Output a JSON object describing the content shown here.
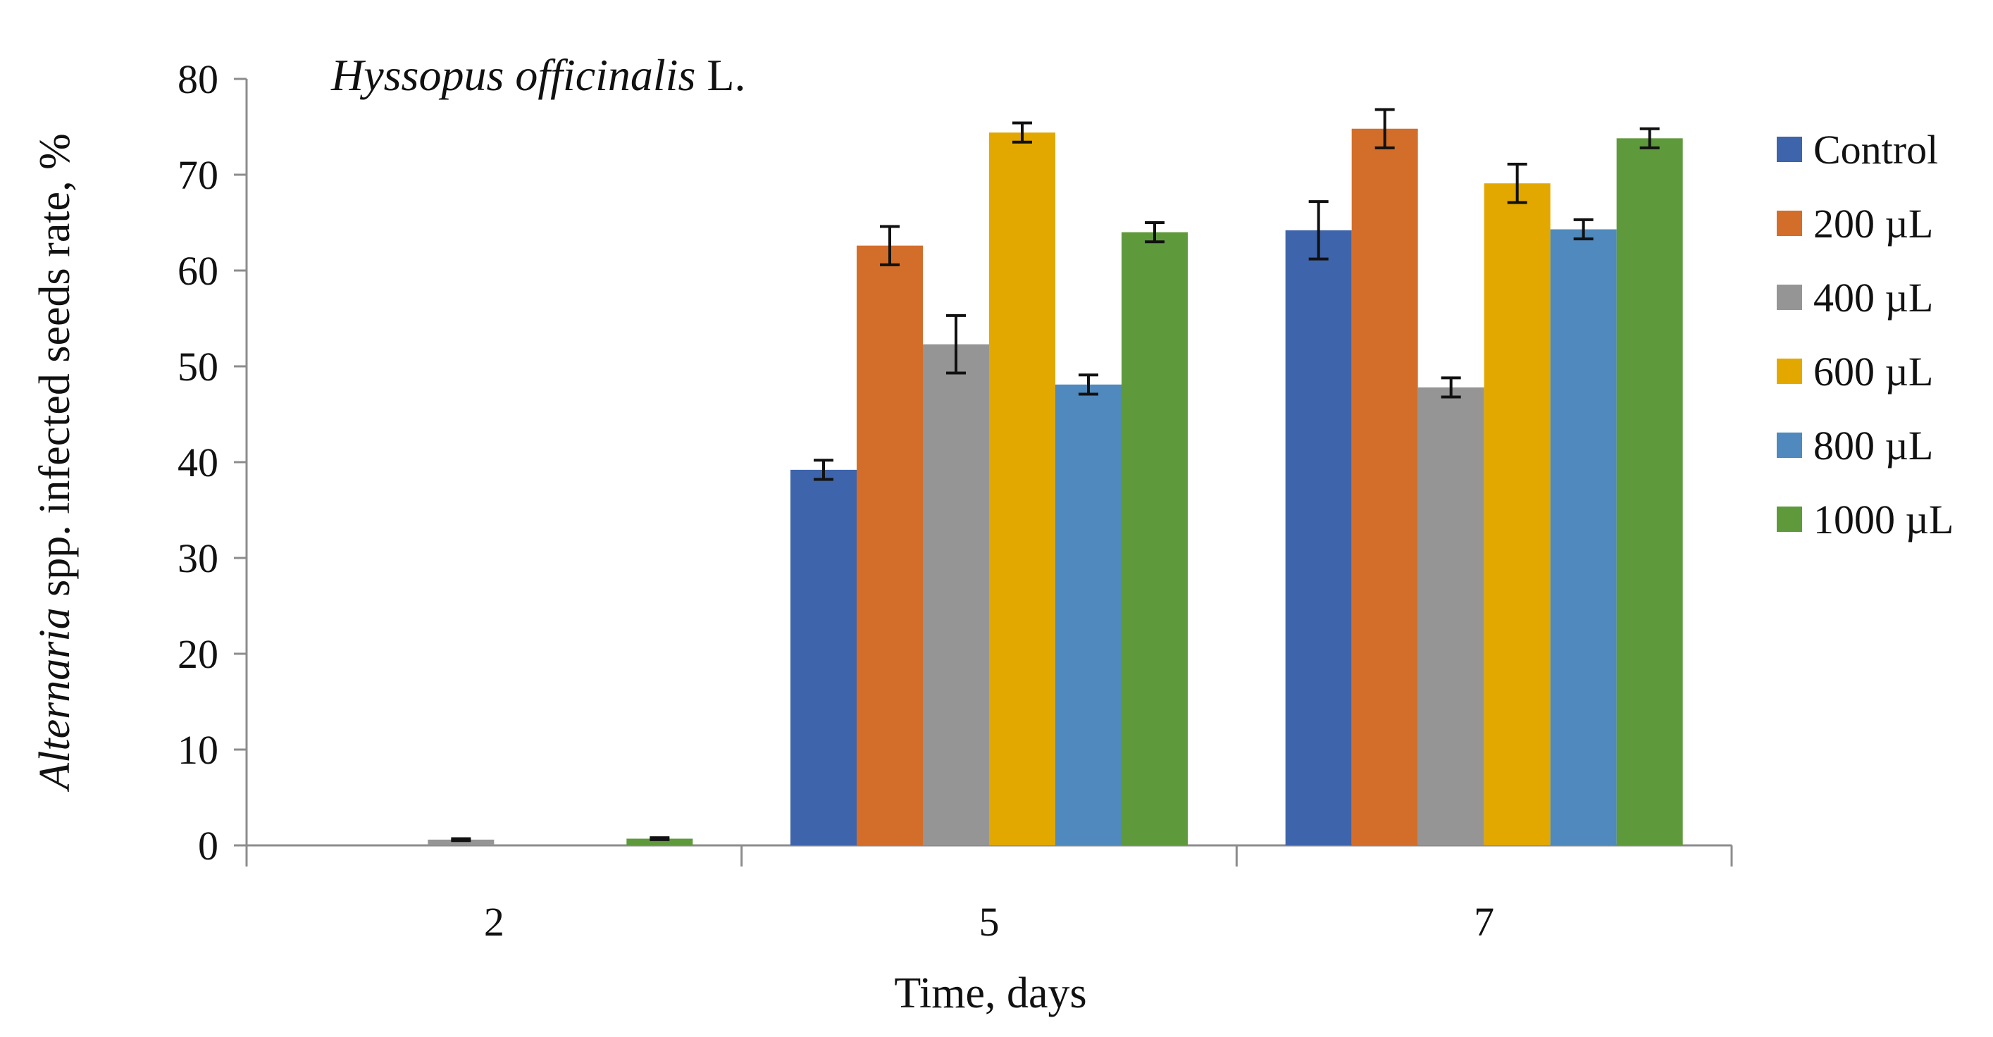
{
  "chart_data": {
    "type": "bar",
    "title_italic": "Hyssopus officinalis",
    "title_normal": " L.",
    "xlabel": "Time, days",
    "ylabel_italic": "Alternaria",
    "ylabel_normal": " spp. infected seeds rate, %",
    "ylim": [
      0,
      80
    ],
    "yticks": [
      0,
      10,
      20,
      30,
      40,
      50,
      60,
      70,
      80
    ],
    "categories": [
      "2",
      "5",
      "7"
    ],
    "legend_position": "right",
    "series": [
      {
        "name": "Control",
        "color": "#3e64ab",
        "values": [
          0,
          39.2,
          64.2
        ],
        "errors": [
          0,
          1.0,
          3.0
        ]
      },
      {
        "name": "200 µL",
        "color": "#d36e2a",
        "values": [
          0,
          62.6,
          74.8
        ],
        "errors": [
          0,
          2.0,
          2.0
        ]
      },
      {
        "name": "400 µL",
        "color": "#959595",
        "values": [
          0.6,
          52.3,
          47.8
        ],
        "errors": [
          0.1,
          3.0,
          1.0
        ]
      },
      {
        "name": "600 µL",
        "color": "#e2a800",
        "values": [
          0,
          74.4,
          69.1
        ],
        "errors": [
          0,
          1.0,
          2.0
        ]
      },
      {
        "name": "800 µL",
        "color": "#4f89bd",
        "values": [
          0,
          48.1,
          64.3
        ],
        "errors": [
          0,
          1.0,
          1.0
        ]
      },
      {
        "name": "1000 µL",
        "color": "#5e9a3c",
        "values": [
          0.7,
          64.0,
          73.8
        ],
        "errors": [
          0.1,
          1.0,
          1.0
        ]
      }
    ]
  }
}
